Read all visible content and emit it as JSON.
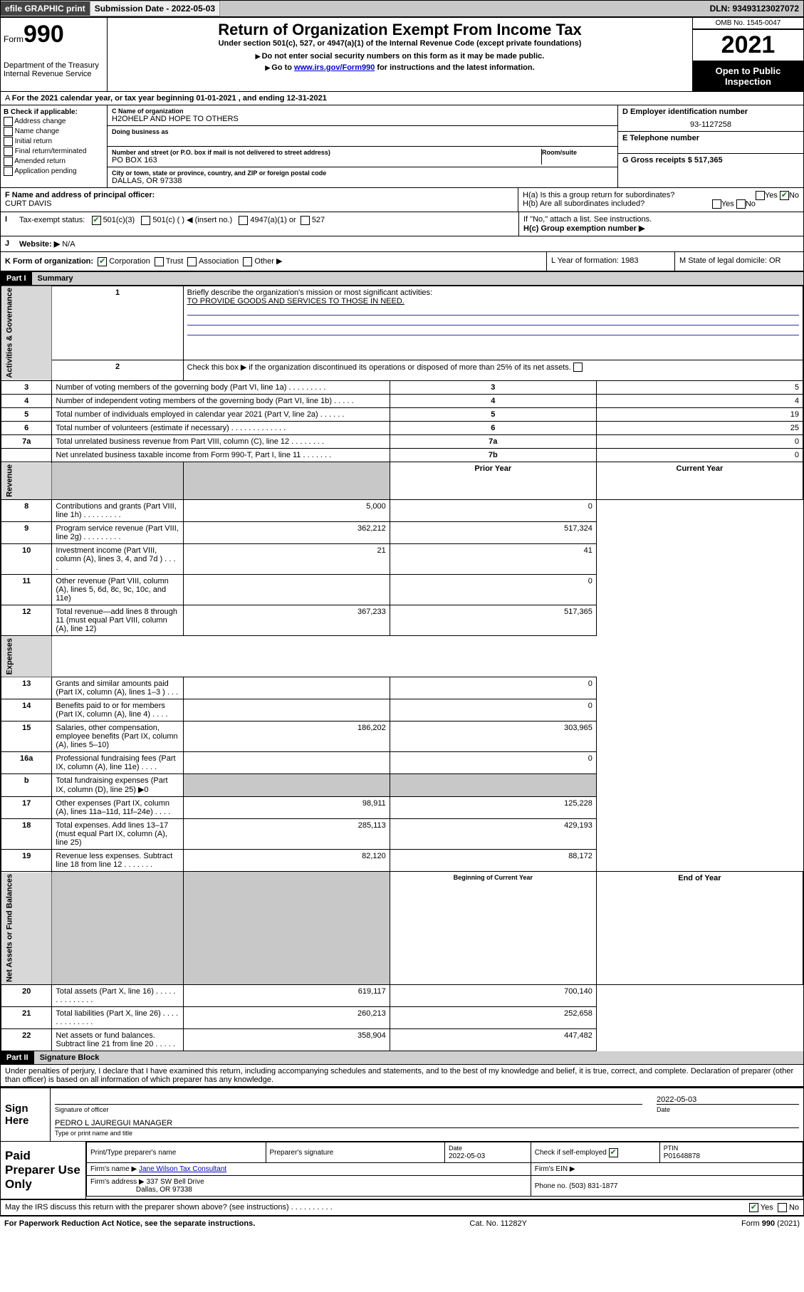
{
  "topbar": {
    "efile": "efile GRAPHIC print",
    "submission_label": "Submission Date - 2022-05-03",
    "dln": "DLN: 93493123027072"
  },
  "header": {
    "form_word": "Form",
    "form_num": "990",
    "dept": "Department of the Treasury",
    "irs": "Internal Revenue Service",
    "title": "Return of Organization Exempt From Income Tax",
    "sub1": "Under section 501(c), 527, or 4947(a)(1) of the Internal Revenue Code (except private foundations)",
    "sub2": "Do not enter social security numbers on this form as it may be made public.",
    "sub3_pre": "Go to ",
    "sub3_link": "www.irs.gov/Form990",
    "sub3_post": " for instructions and the latest information.",
    "omb": "OMB No. 1545-0047",
    "year": "2021",
    "open": "Open to Public Inspection"
  },
  "rowA": {
    "text": "For the 2021 calendar year, or tax year beginning 01-01-2021    , and ending 12-31-2021"
  },
  "colB": {
    "head": "B Check if applicable:",
    "opts": [
      "Address change",
      "Name change",
      "Initial return",
      "Final return/terminated",
      "Amended return",
      "Application pending"
    ]
  },
  "colC": {
    "name_lbl": "C Name of organization",
    "name": "H2OHELP AND HOPE TO OTHERS",
    "dba_lbl": "Doing business as",
    "addr_lbl": "Number and street (or P.O. box if mail is not delivered to street address)",
    "room_lbl": "Room/suite",
    "addr": "PO BOX 163",
    "city_lbl": "City or town, state or province, country, and ZIP or foreign postal code",
    "city": "DALLAS, OR  97338"
  },
  "colD": {
    "ein_lbl": "D Employer identification number",
    "ein": "93-1127258",
    "tel_lbl": "E Telephone number",
    "gross_lbl": "G Gross receipts $ 517,365"
  },
  "fg": {
    "f_lbl": "F Name and address of principal officer:",
    "f_name": "CURT DAVIS",
    "ha": "H(a)  Is this a group return for subordinates?",
    "hb": "H(b)  Are all subordinates included?",
    "hb_note": "If \"No,\" attach a list. See instructions.",
    "hc": "H(c)  Group exemption number ▶",
    "yes": "Yes",
    "no": "No"
  },
  "i": {
    "lbl": "Tax-exempt status:",
    "c3": "501(c)(3)",
    "c": "501(c) (   ) ◀ (insert no.)",
    "a1": "4947(a)(1) or",
    "s527": "527"
  },
  "j": {
    "lbl": "Website: ▶",
    "val": "N/A"
  },
  "k": {
    "lbl": "K Form of organization:",
    "corp": "Corporation",
    "trust": "Trust",
    "assoc": "Association",
    "other": "Other ▶",
    "l": "L Year of formation: 1983",
    "m": "M State of legal domicile: OR"
  },
  "part1": {
    "part": "Part I",
    "title": "Summary",
    "q1": "Briefly describe the organization's mission or most significant activities:",
    "q1a": "TO PROVIDE GOODS AND SERVICES TO THOSE IN NEED.",
    "q2": "Check this box ▶       if the organization discontinued its operations or disposed of more than 25% of its net assets.",
    "rows_gov": [
      {
        "n": "3",
        "t": "Number of voting members of the governing body (Part VI, line 1a)   .    .    .    .    .    .    .    .    .",
        "rn": "3",
        "v": "5"
      },
      {
        "n": "4",
        "t": "Number of independent voting members of the governing body (Part VI, line 1b)  .    .    .    .    .",
        "rn": "4",
        "v": "4"
      },
      {
        "n": "5",
        "t": "Total number of individuals employed in calendar year 2021 (Part V, line 2a)    .    .    .    .    .    .",
        "rn": "5",
        "v": "19"
      },
      {
        "n": "6",
        "t": "Total number of volunteers (estimate if necessary)   .    .    .    .    .    .    .    .    .    .    .    .    .",
        "rn": "6",
        "v": "25"
      },
      {
        "n": "7a",
        "t": "Total unrelated business revenue from Part VIII, column (C), line 12   .    .    .    .    .    .    .    .",
        "rn": "7a",
        "v": "0"
      },
      {
        "n": "",
        "t": "Net unrelated business taxable income from Form 990-T, Part I, line 11   .    .    .    .    .    .    .",
        "rn": "7b",
        "v": "0"
      }
    ],
    "hdr_prior": "Prior Year",
    "hdr_curr": "Current Year",
    "rows_rev": [
      {
        "n": "8",
        "t": "Contributions and grants (Part VIII, line 1h)   .    .    .    .    .    .    .    .    .",
        "p": "5,000",
        "c": "0"
      },
      {
        "n": "9",
        "t": "Program service revenue (Part VIII, line 2g)   .    .    .    .    .    .    .    .    .",
        "p": "362,212",
        "c": "517,324"
      },
      {
        "n": "10",
        "t": "Investment income (Part VIII, column (A), lines 3, 4, and 7d )  .    .    .    .",
        "p": "21",
        "c": "41"
      },
      {
        "n": "11",
        "t": "Other revenue (Part VIII, column (A), lines 5, 6d, 8c, 9c, 10c, and 11e)",
        "p": "",
        "c": "0"
      },
      {
        "n": "12",
        "t": "Total revenue—add lines 8 through 11 (must equal Part VIII, column (A), line 12)",
        "p": "367,233",
        "c": "517,365"
      }
    ],
    "rows_exp": [
      {
        "n": "13",
        "t": "Grants and similar amounts paid (Part IX, column (A), lines 1–3 )  .    .    .",
        "p": "",
        "c": "0"
      },
      {
        "n": "14",
        "t": "Benefits paid to or for members (Part IX, column (A), line 4)  .    .    .    .",
        "p": "",
        "c": "0"
      },
      {
        "n": "15",
        "t": "Salaries, other compensation, employee benefits (Part IX, column (A), lines 5–10)",
        "p": "186,202",
        "c": "303,965"
      },
      {
        "n": "16a",
        "t": "Professional fundraising fees (Part IX, column (A), line 11e)   .    .    .    .",
        "p": "",
        "c": "0"
      },
      {
        "n": "b",
        "t": "Total fundraising expenses (Part IX, column (D), line 25) ▶0",
        "p": "shade",
        "c": "shade"
      },
      {
        "n": "17",
        "t": "Other expenses (Part IX, column (A), lines 11a–11d, 11f–24e)  .    .    .    .",
        "p": "98,911",
        "c": "125,228"
      },
      {
        "n": "18",
        "t": "Total expenses. Add lines 13–17 (must equal Part IX, column (A), line 25)",
        "p": "285,113",
        "c": "429,193"
      },
      {
        "n": "19",
        "t": "Revenue less expenses. Subtract line 18 from line 12  .    .    .    .    .    .    .",
        "p": "82,120",
        "c": "88,172"
      }
    ],
    "hdr_beg": "Beginning of Current Year",
    "hdr_end": "End of Year",
    "rows_net": [
      {
        "n": "20",
        "t": "Total assets (Part X, line 16)  .    .    .    .    .    .    .    .    .    .    .    .    .    .",
        "p": "619,117",
        "c": "700,140"
      },
      {
        "n": "21",
        "t": "Total liabilities (Part X, line 26)   .    .    .    .    .    .    .    .    .    .    .    .    .",
        "p": "260,213",
        "c": "252,658"
      },
      {
        "n": "22",
        "t": "Net assets or fund balances. Subtract line 21 from line 20   .    .    .    .    .",
        "p": "358,904",
        "c": "447,482"
      }
    ],
    "side_gov": "Activities & Governance",
    "side_rev": "Revenue",
    "side_exp": "Expenses",
    "side_net": "Net Assets or Fund Balances"
  },
  "part2": {
    "part": "Part II",
    "title": "Signature Block",
    "decl": "Under penalties of perjury, I declare that I have examined this return, including accompanying schedules and statements, and to the best of my knowledge and belief, it is true, correct, and complete. Declaration of preparer (other than officer) is based on all information of which preparer has any knowledge."
  },
  "sign": {
    "here": "Sign Here",
    "sig_officer": "Signature of officer",
    "date": "Date",
    "date_v": "2022-05-03",
    "name": "PEDRO L JAUREGUI MANAGER",
    "name_lbl": "Type or print name and title"
  },
  "paid": {
    "title": "Paid Preparer Use Only",
    "pt_name": "Print/Type preparer's name",
    "pt_sig": "Preparer's signature",
    "pt_date": "Date",
    "pt_date_v": "2022-05-03",
    "chk_lbl": "Check         if self-employed",
    "ptin_lbl": "PTIN",
    "ptin": "P01648878",
    "firm_name_lbl": "Firm's name    ▶",
    "firm_name": "Jane Wilson Tax Consultant",
    "firm_ein_lbl": "Firm's EIN ▶",
    "firm_addr_lbl": "Firm's address ▶",
    "firm_addr1": "337 SW Bell Drive",
    "firm_addr2": "Dallas, OR  97338",
    "phone_lbl": "Phone no. (503) 831-1877"
  },
  "footer": {
    "may": "May the IRS discuss this return with the preparer shown above? (see instructions)   .    .    .    .    .    .    .    .    .    .",
    "yes": "Yes",
    "no": "No",
    "pra": "For Paperwork Reduction Act Notice, see the separate instructions.",
    "cat": "Cat. No. 11282Y",
    "form": "Form 990 (2021)"
  }
}
